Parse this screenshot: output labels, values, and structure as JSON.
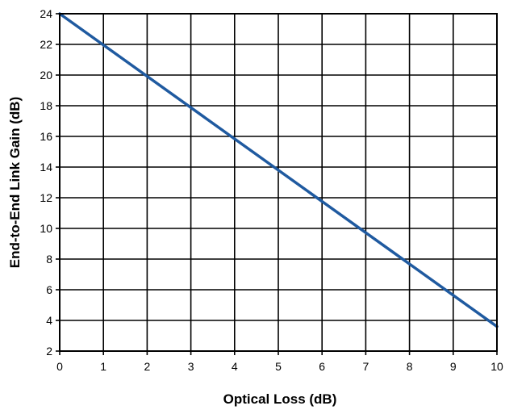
{
  "chart_data": {
    "type": "line",
    "title": "",
    "xlabel": "Optical Loss (dB)",
    "ylabel": "End-to-End Link Gain (dB)",
    "xlim": [
      0,
      10
    ],
    "ylim": [
      2,
      24
    ],
    "xticks": [
      0,
      1,
      2,
      3,
      4,
      5,
      6,
      7,
      8,
      9,
      10
    ],
    "yticks": [
      2,
      4,
      6,
      8,
      10,
      12,
      14,
      16,
      18,
      20,
      22,
      24
    ],
    "grid": true,
    "legend": "none",
    "series": [
      {
        "color": "#1f5aa0",
        "x": [
          0,
          10
        ],
        "y": [
          24,
          3.6
        ]
      }
    ]
  }
}
